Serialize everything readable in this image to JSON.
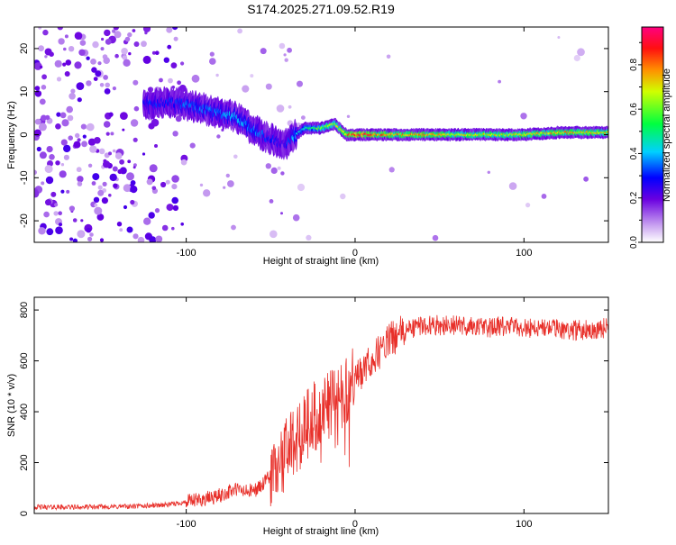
{
  "title": "S174.2025.271.09.52.R19",
  "chart_data": [
    {
      "type": "heatmap",
      "name": "spectrogram",
      "xlabel": "Height of straight line (km)",
      "ylabel": "Frequency (Hz)",
      "xlim": [
        -190,
        150
      ],
      "ylim": [
        -25,
        25
      ],
      "x_ticks": [
        -100,
        0,
        100
      ],
      "y_ticks": [
        -20,
        -10,
        0,
        10,
        20
      ],
      "colorbar": {
        "label": "Normalized spectral amplitude",
        "range": [
          0,
          0.97
        ],
        "ticks": [
          0.0,
          0.2,
          0.4,
          0.6,
          0.8
        ]
      },
      "ridge": {
        "x": [
          -125,
          -110,
          -100,
          -90,
          -80,
          -70,
          -60,
          -50,
          -42,
          -38,
          -30,
          -20,
          -12,
          -5,
          0,
          20,
          40,
          60,
          80,
          100,
          120,
          150
        ],
        "freq": [
          7,
          7.5,
          7,
          6,
          5,
          4,
          1,
          -1,
          -2.5,
          -1,
          1.5,
          1.5,
          2.5,
          0,
          0,
          0,
          0,
          0,
          0,
          0,
          0.5,
          0.5
        ],
        "amplitude": [
          0.3,
          0.3,
          0.35,
          0.35,
          0.35,
          0.4,
          0.35,
          0.3,
          0.25,
          0.35,
          0.45,
          0.6,
          0.65,
          0.8,
          0.9,
          0.75,
          0.75,
          0.7,
          0.7,
          0.7,
          0.75,
          0.7
        ]
      }
    },
    {
      "type": "line",
      "name": "snr",
      "xlabel": "Height of straight line (km)",
      "ylabel": "SNR (10 * v/v)",
      "xlim": [
        -190,
        150
      ],
      "ylim": [
        0,
        850
      ],
      "x_ticks": [
        -100,
        0,
        100
      ],
      "y_ticks": [
        0,
        200,
        400,
        600,
        800
      ],
      "series": [
        {
          "name": "SNR",
          "color": "#e8302a",
          "x": [
            -190,
            -160,
            -130,
            -110,
            -100,
            -90,
            -80,
            -75,
            -70,
            -65,
            -60,
            -55,
            -50,
            -45,
            -40,
            -35,
            -30,
            -25,
            -20,
            -15,
            -10,
            -5,
            0,
            5,
            10,
            15,
            20,
            25,
            30,
            35,
            40,
            50,
            60,
            70,
            80,
            90,
            100,
            110,
            120,
            130,
            140,
            150
          ],
          "y": [
            25,
            25,
            28,
            35,
            45,
            55,
            70,
            85,
            95,
            85,
            90,
            110,
            150,
            200,
            250,
            300,
            350,
            380,
            400,
            430,
            460,
            490,
            520,
            560,
            600,
            640,
            680,
            700,
            720,
            730,
            740,
            740,
            740,
            735,
            730,
            735,
            730,
            730,
            725,
            720,
            725,
            730
          ]
        }
      ]
    }
  ]
}
